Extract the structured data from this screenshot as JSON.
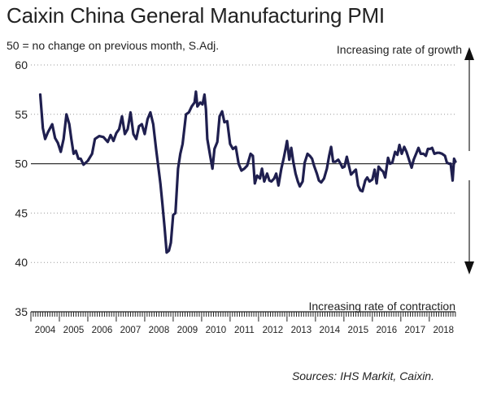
{
  "chart_data": {
    "type": "line",
    "title": "Caixin China General Manufacturing PMI",
    "subtitle": "50 = no change on previous month, S.Adj.",
    "annotations": {
      "top": "Increasing rate of growth",
      "bottom": "Increasing rate of contraction"
    },
    "source": "Sources: IHS Markit, Caixin.",
    "ylim": [
      35,
      60
    ],
    "yticks": [
      35,
      40,
      45,
      50,
      55,
      60
    ],
    "x_ticks": [
      "2004",
      "2005",
      "2006",
      "2007",
      "2008",
      "2009",
      "2010",
      "2011",
      "2012",
      "2013",
      "2014",
      "2015",
      "2016",
      "2017",
      "2018"
    ],
    "xlim": [
      2004.0,
      2018.92
    ],
    "reference_line": 50,
    "grid": "horizontal-dotted",
    "line_color": "#1f1f4f",
    "series": [
      {
        "name": "",
        "points": [
          [
            2004.33,
            57.0
          ],
          [
            2004.42,
            53.6
          ],
          [
            2004.5,
            52.5
          ],
          [
            2004.6,
            53.2
          ],
          [
            2004.75,
            54.0
          ],
          [
            2004.85,
            52.6
          ],
          [
            2004.95,
            52.1
          ],
          [
            2005.05,
            51.2
          ],
          [
            2005.15,
            52.5
          ],
          [
            2005.25,
            55.0
          ],
          [
            2005.35,
            54.0
          ],
          [
            2005.42,
            52.5
          ],
          [
            2005.5,
            51.0
          ],
          [
            2005.58,
            51.3
          ],
          [
            2005.67,
            50.5
          ],
          [
            2005.75,
            50.5
          ],
          [
            2005.85,
            49.9
          ],
          [
            2006.0,
            50.3
          ],
          [
            2006.15,
            51.0
          ],
          [
            2006.25,
            52.5
          ],
          [
            2006.4,
            52.8
          ],
          [
            2006.55,
            52.7
          ],
          [
            2006.7,
            52.2
          ],
          [
            2006.8,
            52.9
          ],
          [
            2006.9,
            52.3
          ],
          [
            2007.0,
            53.1
          ],
          [
            2007.1,
            53.5
          ],
          [
            2007.2,
            54.8
          ],
          [
            2007.3,
            53.0
          ],
          [
            2007.4,
            53.5
          ],
          [
            2007.5,
            55.2
          ],
          [
            2007.6,
            53.0
          ],
          [
            2007.7,
            52.5
          ],
          [
            2007.8,
            53.8
          ],
          [
            2007.9,
            54.0
          ],
          [
            2008.0,
            53.0
          ],
          [
            2008.1,
            54.5
          ],
          [
            2008.2,
            55.2
          ],
          [
            2008.3,
            54.0
          ],
          [
            2008.4,
            51.5
          ],
          [
            2008.5,
            49.2
          ],
          [
            2008.55,
            48.0
          ],
          [
            2008.62,
            46.0
          ],
          [
            2008.7,
            43.5
          ],
          [
            2008.77,
            41.0
          ],
          [
            2008.85,
            41.2
          ],
          [
            2008.92,
            42.0
          ],
          [
            2009.0,
            44.8
          ],
          [
            2009.08,
            45.0
          ],
          [
            2009.17,
            49.5
          ],
          [
            2009.25,
            51.0
          ],
          [
            2009.33,
            52.0
          ],
          [
            2009.45,
            55.0
          ],
          [
            2009.55,
            55.2
          ],
          [
            2009.65,
            55.8
          ],
          [
            2009.75,
            56.2
          ],
          [
            2009.8,
            57.3
          ],
          [
            2009.85,
            55.8
          ],
          [
            2009.95,
            56.2
          ],
          [
            2010.03,
            56.0
          ],
          [
            2010.1,
            57.0
          ],
          [
            2010.15,
            55.5
          ],
          [
            2010.2,
            52.5
          ],
          [
            2010.3,
            50.8
          ],
          [
            2010.38,
            49.5
          ],
          [
            2010.45,
            51.5
          ],
          [
            2010.55,
            52.2
          ],
          [
            2010.63,
            54.8
          ],
          [
            2010.72,
            55.3
          ],
          [
            2010.8,
            54.2
          ],
          [
            2010.9,
            54.3
          ],
          [
            2011.0,
            52.0
          ],
          [
            2011.1,
            51.5
          ],
          [
            2011.2,
            51.7
          ],
          [
            2011.3,
            50.0
          ],
          [
            2011.4,
            49.3
          ],
          [
            2011.5,
            49.5
          ],
          [
            2011.6,
            49.8
          ],
          [
            2011.72,
            51.0
          ],
          [
            2011.8,
            50.8
          ],
          [
            2011.87,
            48.0
          ],
          [
            2011.95,
            48.8
          ],
          [
            2012.05,
            48.5
          ],
          [
            2012.12,
            49.5
          ],
          [
            2012.2,
            48.2
          ],
          [
            2012.3,
            49.0
          ],
          [
            2012.38,
            48.3
          ],
          [
            2012.45,
            48.2
          ],
          [
            2012.55,
            48.5
          ],
          [
            2012.62,
            49.0
          ],
          [
            2012.7,
            47.8
          ],
          [
            2012.8,
            49.5
          ],
          [
            2012.88,
            50.5
          ],
          [
            2012.95,
            51.5
          ],
          [
            2013.0,
            52.3
          ],
          [
            2013.08,
            50.4
          ],
          [
            2013.15,
            51.6
          ],
          [
            2013.22,
            50.2
          ],
          [
            2013.3,
            49.0
          ],
          [
            2013.38,
            48.2
          ],
          [
            2013.45,
            47.7
          ],
          [
            2013.55,
            48.2
          ],
          [
            2013.62,
            50.1
          ],
          [
            2013.72,
            51.0
          ],
          [
            2013.8,
            50.8
          ],
          [
            2013.88,
            50.5
          ],
          [
            2013.95,
            49.8
          ],
          [
            2014.05,
            49.0
          ],
          [
            2014.12,
            48.3
          ],
          [
            2014.2,
            48.1
          ],
          [
            2014.3,
            48.5
          ],
          [
            2014.4,
            49.5
          ],
          [
            2014.48,
            50.8
          ],
          [
            2014.55,
            51.7
          ],
          [
            2014.62,
            50.2
          ],
          [
            2014.7,
            50.2
          ],
          [
            2014.8,
            50.4
          ],
          [
            2014.88,
            50.0
          ],
          [
            2014.95,
            49.6
          ],
          [
            2015.02,
            49.7
          ],
          [
            2015.1,
            50.7
          ],
          [
            2015.18,
            49.7
          ],
          [
            2015.25,
            48.9
          ],
          [
            2015.35,
            49.2
          ],
          [
            2015.42,
            49.4
          ],
          [
            2015.5,
            47.8
          ],
          [
            2015.58,
            47.3
          ],
          [
            2015.65,
            47.2
          ],
          [
            2015.75,
            48.3
          ],
          [
            2015.82,
            48.6
          ],
          [
            2015.9,
            48.2
          ],
          [
            2016.0,
            48.4
          ],
          [
            2016.08,
            49.4
          ],
          [
            2016.15,
            48.0
          ],
          [
            2016.22,
            49.7
          ],
          [
            2016.3,
            49.4
          ],
          [
            2016.38,
            49.2
          ],
          [
            2016.45,
            48.6
          ],
          [
            2016.55,
            50.6
          ],
          [
            2016.62,
            50.0
          ],
          [
            2016.7,
            50.1
          ],
          [
            2016.8,
            51.2
          ],
          [
            2016.88,
            50.9
          ],
          [
            2016.95,
            51.9
          ],
          [
            2017.03,
            51.0
          ],
          [
            2017.12,
            51.7
          ],
          [
            2017.2,
            51.2
          ],
          [
            2017.3,
            50.3
          ],
          [
            2017.38,
            49.6
          ],
          [
            2017.45,
            50.4
          ],
          [
            2017.55,
            51.1
          ],
          [
            2017.62,
            51.6
          ],
          [
            2017.7,
            51.0
          ],
          [
            2017.8,
            51.0
          ],
          [
            2017.88,
            50.8
          ],
          [
            2017.95,
            51.5
          ],
          [
            2018.03,
            51.5
          ],
          [
            2018.1,
            51.6
          ],
          [
            2018.18,
            51.0
          ],
          [
            2018.28,
            51.1
          ],
          [
            2018.35,
            51.1
          ],
          [
            2018.45,
            51.0
          ],
          [
            2018.55,
            50.8
          ],
          [
            2018.62,
            50.1
          ],
          [
            2018.7,
            50.0
          ],
          [
            2018.75,
            50.0
          ],
          [
            2018.82,
            48.3
          ],
          [
            2018.87,
            50.5
          ],
          [
            2018.92,
            50.2
          ]
        ]
      }
    ]
  }
}
